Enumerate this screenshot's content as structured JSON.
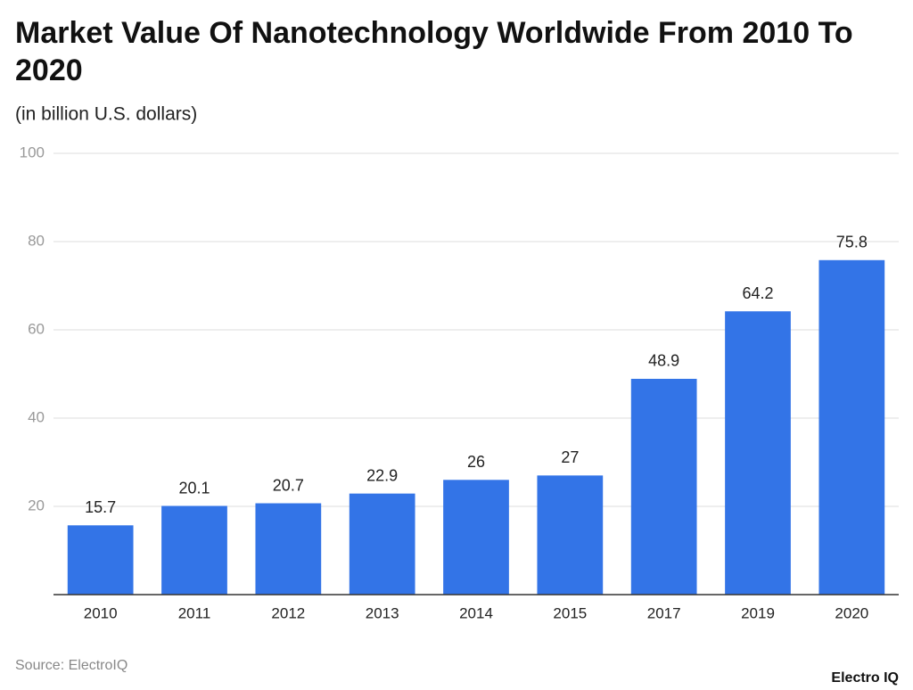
{
  "chart_data": {
    "type": "bar",
    "title": "Market Value Of Nanotechnology Worldwide From 2010 To 2020",
    "subtitle": "(in billion U.S. dollars)",
    "categories": [
      "2010",
      "2011",
      "2012",
      "2013",
      "2014",
      "2015",
      "2017",
      "2019",
      "2020"
    ],
    "values": [
      15.7,
      20.1,
      20.7,
      22.9,
      26,
      27,
      48.9,
      64.2,
      75.8
    ],
    "color": "#3374e7",
    "ylim": [
      0,
      100
    ],
    "yticks": [
      20,
      40,
      60,
      80,
      100
    ],
    "grid": true,
    "source": "Source: ElectroIQ",
    "brand": "Electro IQ"
  }
}
